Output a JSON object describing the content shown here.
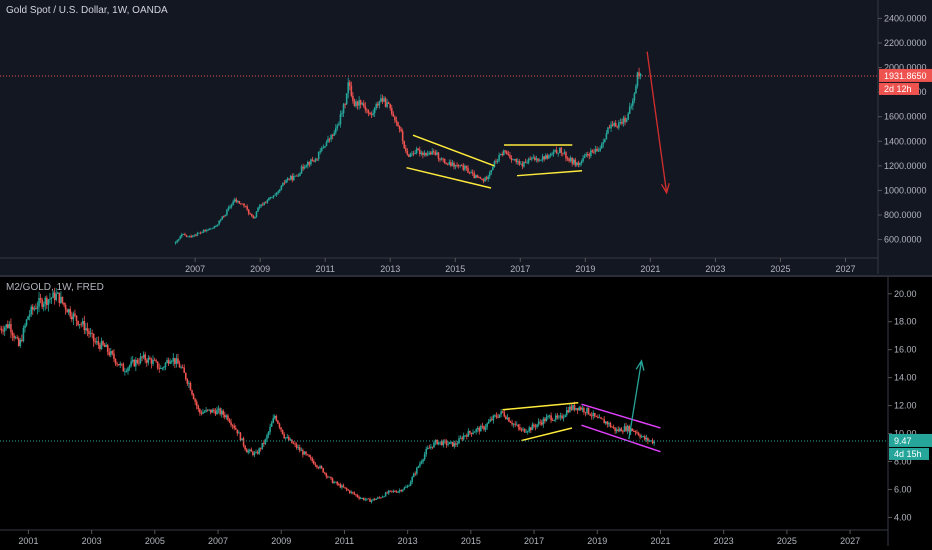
{
  "colors": {
    "up": "#26a69a",
    "down": "#ef5350",
    "top_bg": "#131722",
    "bottom_bg": "#000000",
    "axis_text": "#b2b5be",
    "trend_yellow": "#ffeb3b",
    "trend_magenta": "#e040fb",
    "arrow_red": "#d32f2f",
    "arrow_green": "#26a69a",
    "price_line_red": "#ef5350",
    "price_line_green": "#26a69a"
  },
  "top": {
    "title": "Gold Spot / U.S. Dollar, 1W, OANDA",
    "price_label": "1931.8650",
    "time_label": "2d 12h"
  },
  "bottom": {
    "title": "M2/GOLD, 1W, FRED",
    "price_label": "9.47",
    "time_label": "4d 15h"
  },
  "chart_data": [
    {
      "type": "line",
      "title": "Gold Spot / U.S. Dollar, 1W, OANDA",
      "xlabel": "",
      "ylabel": "",
      "x_ticks": [
        "2007",
        "2009",
        "2011",
        "2013",
        "2015",
        "2017",
        "2019",
        "2021",
        "2023",
        "2025",
        "2027"
      ],
      "y_ticks": [
        "600.0000",
        "800.0000",
        "1000.0000",
        "1200.0000",
        "1400.0000",
        "1600.0000",
        "1800.0000",
        "2000.0000",
        "2200.0000",
        "2400.0000"
      ],
      "ylim": [
        450,
        2550
      ],
      "xlim": [
        2001.0,
        2028.0
      ],
      "series": [
        {
          "x": [
            2006.4,
            2006.6,
            2006.8,
            2007.0,
            2007.3,
            2007.6,
            2007.9,
            2008.2,
            2008.5,
            2008.8,
            2008.9,
            2009.2,
            2009.5,
            2009.8,
            2010.1,
            2010.4,
            2010.7,
            2011.0,
            2011.3,
            2011.6,
            2011.7,
            2011.9,
            2012.1,
            2012.4,
            2012.7,
            2013.0,
            2013.3,
            2013.5,
            2013.8,
            2014.1,
            2014.4,
            2014.7,
            2015.0,
            2015.3,
            2015.6,
            2015.9,
            2016.2,
            2016.5,
            2016.8,
            2017.0,
            2017.3,
            2017.6,
            2017.9,
            2018.2,
            2018.5,
            2018.8,
            2019.1,
            2019.4,
            2019.7,
            2020.0,
            2020.3,
            2020.5,
            2020.6,
            2020.7
          ],
          "values": [
            570,
            640,
            620,
            640,
            670,
            700,
            800,
            920,
            880,
            760,
            840,
            920,
            960,
            1090,
            1110,
            1220,
            1250,
            1380,
            1470,
            1700,
            1880,
            1700,
            1730,
            1600,
            1750,
            1670,
            1500,
            1280,
            1320,
            1300,
            1300,
            1220,
            1200,
            1180,
            1110,
            1080,
            1220,
            1320,
            1250,
            1200,
            1250,
            1260,
            1280,
            1330,
            1250,
            1210,
            1300,
            1320,
            1500,
            1540,
            1600,
            1760,
            1950,
            1930
          ]
        }
      ],
      "annotations": [
        {
          "type": "channel",
          "points": [
            [
              2013.7,
              1450
            ],
            [
              2016.2,
              1200
            ],
            [
              2013.5,
              1185
            ],
            [
              2016.1,
              1020
            ]
          ]
        },
        {
          "type": "triangle",
          "points": [
            [
              2016.5,
              1370
            ],
            [
              2018.6,
              1370
            ],
            [
              2016.9,
              1120
            ],
            [
              2018.9,
              1160
            ]
          ]
        },
        {
          "type": "arrow_down",
          "from": [
            2020.9,
            2130
          ],
          "to": [
            2021.5,
            980
          ]
        }
      ]
    },
    {
      "type": "line",
      "title": "M2/GOLD, 1W, FRED",
      "xlabel": "",
      "ylabel": "",
      "x_ticks": [
        "2001",
        "2003",
        "2005",
        "2007",
        "2009",
        "2011",
        "2013",
        "2015",
        "2017",
        "2019",
        "2021",
        "2023",
        "2025",
        "2027"
      ],
      "y_ticks": [
        "4.00",
        "6.00",
        "8.00",
        "10.00",
        "12.00",
        "14.00",
        "16.00",
        "18.00",
        "20.00"
      ],
      "ylim": [
        3.1,
        21.2
      ],
      "xlim": [
        2000.1,
        2028.2
      ],
      "series": [
        {
          "x": [
            2000.1,
            2000.4,
            2000.7,
            2001.0,
            2001.3,
            2001.6,
            2001.9,
            2002.2,
            2002.5,
            2002.8,
            2003.1,
            2003.4,
            2003.7,
            2004.0,
            2004.3,
            2004.6,
            2004.9,
            2005.2,
            2005.5,
            2005.8,
            2006.1,
            2006.4,
            2006.7,
            2007.0,
            2007.3,
            2007.6,
            2007.9,
            2008.2,
            2008.5,
            2008.8,
            2009.1,
            2009.4,
            2009.7,
            2010.0,
            2010.3,
            2010.6,
            2010.9,
            2011.2,
            2011.5,
            2011.8,
            2012.1,
            2012.4,
            2012.7,
            2013.0,
            2013.3,
            2013.6,
            2013.9,
            2014.2,
            2014.5,
            2014.8,
            2015.1,
            2015.4,
            2015.7,
            2016.0,
            2016.3,
            2016.6,
            2016.9,
            2017.2,
            2017.5,
            2017.8,
            2018.1,
            2018.4,
            2018.7,
            2019.0,
            2019.3,
            2019.6,
            2019.9,
            2020.2,
            2020.5,
            2020.8
          ],
          "values": [
            17.5,
            17.8,
            16.2,
            18.5,
            19.3,
            19.6,
            19.9,
            19.0,
            18.2,
            17.6,
            16.5,
            16.2,
            15.4,
            14.6,
            15.0,
            15.4,
            15.2,
            14.6,
            15.5,
            14.8,
            13.5,
            11.5,
            11.6,
            11.6,
            11.2,
            10.2,
            8.8,
            8.5,
            9.5,
            11.3,
            9.8,
            9.2,
            8.6,
            8.0,
            7.4,
            6.6,
            6.2,
            5.8,
            5.4,
            5.2,
            5.4,
            5.8,
            5.9,
            6.2,
            7.5,
            8.8,
            9.4,
            9.3,
            9.2,
            9.9,
            10.2,
            10.4,
            11.1,
            11.5,
            10.8,
            10.2,
            10.4,
            10.8,
            11.2,
            11.0,
            11.8,
            11.9,
            11.6,
            11.0,
            10.8,
            10.2,
            10.4,
            10.2,
            9.6,
            9.4
          ]
        }
      ],
      "annotations": [
        {
          "type": "channel",
          "points": [
            [
              2016.0,
              11.7
            ],
            [
              2018.4,
              12.2
            ],
            [
              2016.6,
              9.5
            ],
            [
              2018.2,
              10.4
            ]
          ]
        },
        {
          "type": "channel",
          "points": [
            [
              2018.5,
              12.1
            ],
            [
              2021.0,
              10.4
            ],
            [
              2018.5,
              10.6
            ],
            [
              2021.0,
              8.7
            ]
          ]
        },
        {
          "type": "arrow_up",
          "from": [
            2020.0,
            9.6
          ],
          "to": [
            2020.4,
            15.2
          ]
        }
      ]
    }
  ]
}
